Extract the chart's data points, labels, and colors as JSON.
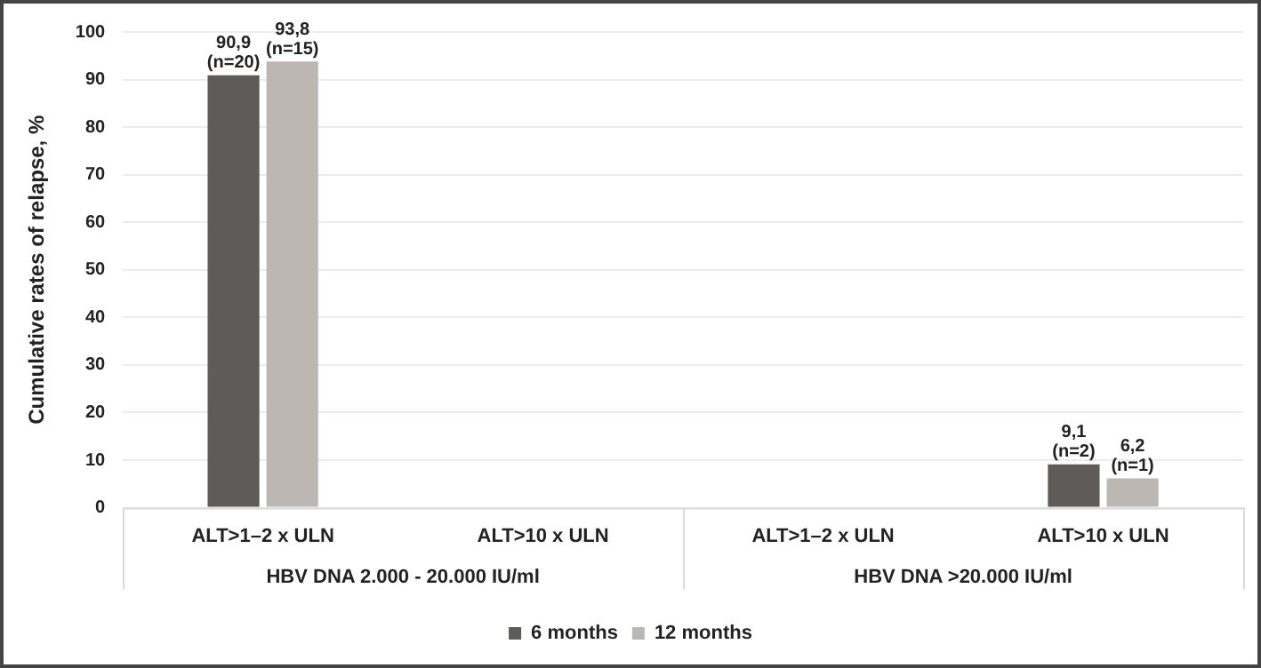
{
  "chart_data": {
    "type": "bar",
    "ylabel": "Cumulative rates of relapse, %",
    "categories": [
      "ALT>1–2 x ULN",
      "ALT>10 x ULN",
      "ALT>1–2 x ULN",
      "ALT>10 x ULN"
    ],
    "series": [
      {
        "name": "6 months",
        "color": "#5f5b58",
        "values": [
          90.9,
          null,
          null,
          9.1
        ],
        "value_labels": [
          "90,9 (n=20)",
          null,
          null,
          "9,1 (n=2)"
        ]
      },
      {
        "name": "12 months",
        "color": "#bdb7b4",
        "values": [
          93.8,
          null,
          null,
          6.2
        ],
        "value_labels": [
          "93,8 (n=15)",
          null,
          null,
          "6,2 (n=1)"
        ]
      }
    ],
    "annotations": [
      "HBV DNA 2.000 - 20.000 IU/ml",
      "HBV DNA >20.000 IU/ml"
    ],
    "ylim": [
      0,
      100
    ],
    "yticks": [
      0,
      10,
      20,
      30,
      40,
      50,
      60,
      70,
      80,
      90,
      100
    ],
    "grid": "y",
    "legend": "bottom"
  }
}
